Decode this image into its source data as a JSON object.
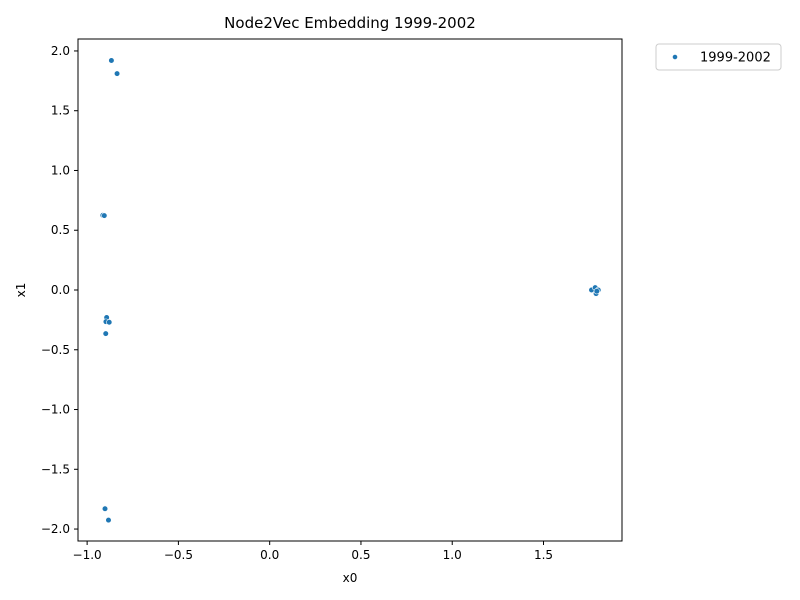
{
  "chart_data": {
    "type": "scatter",
    "title": "Node2Vec Embedding 1999-2002",
    "xlabel": "x0",
    "ylabel": "x1",
    "xlim": [
      -1.05,
      1.93
    ],
    "ylim": [
      -2.1,
      2.1
    ],
    "x_ticks": [
      -1.0,
      -0.5,
      0.0,
      0.5,
      1.0,
      1.5
    ],
    "x_tick_labels": [
      "−1.0",
      "−0.5",
      "0.0",
      "0.5",
      "1.0",
      "1.5"
    ],
    "y_ticks": [
      -2.0,
      -1.5,
      -1.0,
      -0.5,
      0.0,
      0.5,
      1.0,
      1.5,
      2.0
    ],
    "y_tick_labels": [
      "−2.0",
      "−1.5",
      "−1.0",
      "−0.5",
      "0.0",
      "0.5",
      "1.0",
      "1.5",
      "2.0"
    ],
    "grid": false,
    "legend_position": "outside-top-right",
    "series": [
      {
        "name": "1999-2002",
        "color": "#1f77b4",
        "points": [
          {
            "x": -0.867,
            "y": 1.92
          },
          {
            "x": -0.836,
            "y": 1.81
          },
          {
            "x": -0.914,
            "y": 0.625
          },
          {
            "x": -0.906,
            "y": 0.622
          },
          {
            "x": -0.893,
            "y": -0.23
          },
          {
            "x": -0.897,
            "y": -0.265
          },
          {
            "x": -0.879,
            "y": -0.27
          },
          {
            "x": -0.898,
            "y": -0.365
          },
          {
            "x": -0.902,
            "y": -1.83
          },
          {
            "x": -0.883,
            "y": -1.925
          },
          {
            "x": 1.763,
            "y": 0.0
          },
          {
            "x": 1.783,
            "y": 0.02
          },
          {
            "x": 1.788,
            "y": -0.03
          },
          {
            "x": 1.8,
            "y": 0.0
          },
          {
            "x": 1.792,
            "y": -0.01
          }
        ]
      }
    ]
  }
}
